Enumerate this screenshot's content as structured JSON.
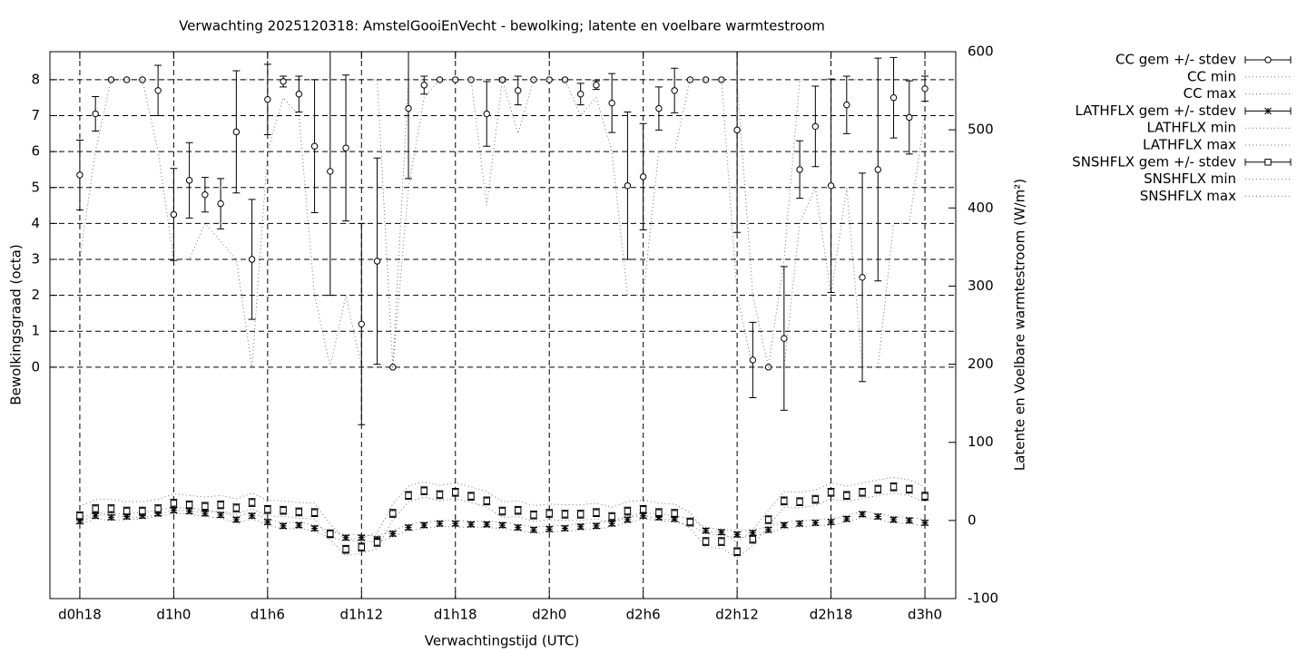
{
  "chart_data": {
    "type": "errorbar-line",
    "title": "Verwachting 2025120318: AmstelGooiEnVecht - bewolking; latente en voelbare warmtestroom",
    "xlabel": "Verwachtingstijd (UTC)",
    "ylabel": "Bewolkingsgraad (octa)",
    "y2label": "Latente en Voelbare warmtestroom (W/m²)",
    "x": [
      18,
      19,
      20,
      21,
      22,
      23,
      24,
      25,
      26,
      27,
      28,
      29,
      30,
      31,
      32,
      33,
      34,
      35,
      36,
      37,
      38,
      39,
      40,
      41,
      42,
      43,
      44,
      45,
      46,
      47,
      48,
      49,
      50,
      51,
      52,
      53,
      54,
      55,
      56,
      57,
      58,
      59,
      60,
      61,
      62,
      63,
      64,
      65,
      66,
      67,
      68,
      69,
      70,
      71,
      72
    ],
    "xlim": [
      16.09,
      73.97
    ],
    "xticks": [
      {
        "value": 18,
        "label": "d0h18"
      },
      {
        "value": 24,
        "label": "d1h0"
      },
      {
        "value": 30,
        "label": "d1h6"
      },
      {
        "value": 36,
        "label": "d1h12"
      },
      {
        "value": 42,
        "label": "d1h18"
      },
      {
        "value": 48,
        "label": "d2h0"
      },
      {
        "value": 54,
        "label": "d2h6"
      },
      {
        "value": 60,
        "label": "d2h12"
      },
      {
        "value": 66,
        "label": "d2h18"
      },
      {
        "value": 72,
        "label": "d3h0"
      }
    ],
    "ylim": [
      -6.44,
      8.78
    ],
    "yticks": [
      0,
      1,
      2,
      3,
      4,
      5,
      6,
      7,
      8
    ],
    "y2lim": [
      -100,
      600
    ],
    "y2ticks": [
      -100,
      0,
      100,
      200,
      300,
      400,
      500,
      600
    ],
    "grid": true,
    "legend": "outside-top-right",
    "series": [
      {
        "name": "CC gem +/- stdev",
        "style": "errorbars",
        "marker": "circle",
        "color": "#000000",
        "axis": "y",
        "values": [
          5.35,
          7.05,
          8,
          8,
          8,
          7.7,
          4.25,
          5.2,
          4.8,
          4.55,
          6.55,
          3,
          7.45,
          7.95,
          7.6,
          6.15,
          5.45,
          6.1,
          1.2,
          2.95,
          0,
          7.2,
          7.85,
          8,
          8,
          8,
          7.05,
          8,
          7.7,
          8,
          8,
          8,
          7.6,
          7.85,
          7.35,
          5.05,
          5.3,
          7.2,
          7.7,
          8,
          8,
          8,
          6.6,
          0.2,
          0,
          0.8,
          5.5,
          6.7,
          5.05,
          7.3,
          2.5,
          5.5,
          7.5,
          6.95,
          7.75
        ],
        "errors": [
          0.97,
          0.48,
          0,
          0,
          0,
          0.7,
          1.28,
          1.05,
          0.48,
          0.7,
          1.7,
          1.67,
          0.98,
          0.15,
          0.5,
          1.85,
          3.45,
          2.03,
          2.8,
          2.87,
          0,
          1.95,
          0.25,
          0,
          0,
          0,
          0.9,
          0.05,
          0.4,
          0,
          0,
          0,
          0.3,
          0.12,
          0.82,
          2.05,
          1.48,
          0.6,
          0.62,
          0,
          0,
          0,
          2.85,
          1.05,
          0,
          2.0,
          0.8,
          1.12,
          2.97,
          0.8,
          2.9,
          3.1,
          1.12,
          1.02,
          0.35
        ]
      },
      {
        "name": "CC min",
        "style": "dotted",
        "color": "#000000",
        "axis": "y",
        "values": [
          3,
          6,
          8,
          8,
          8,
          6,
          3,
          3,
          4,
          3.5,
          3,
          0,
          6,
          7.5,
          7,
          2,
          0,
          2,
          0,
          0,
          0,
          5,
          7.5,
          8,
          8,
          8,
          4.5,
          8,
          6.5,
          8,
          8,
          8,
          7,
          7.5,
          6,
          2,
          2,
          6,
          6,
          8,
          8,
          8,
          2,
          0,
          0,
          0,
          4,
          5,
          2,
          5,
          0,
          0,
          4,
          4,
          7
        ]
      },
      {
        "name": "CC max",
        "style": "dotted",
        "color": "#000000",
        "axis": "y",
        "values": [
          8,
          8,
          8,
          8,
          8,
          8,
          8,
          8,
          8,
          8,
          8,
          8,
          8,
          8,
          8,
          8,
          8,
          8,
          8,
          8,
          0,
          8,
          8,
          8,
          8,
          8,
          8,
          8,
          8,
          8,
          8,
          8,
          8,
          8,
          8,
          8,
          8,
          8,
          8,
          8,
          8,
          8,
          8,
          2,
          0,
          3,
          8,
          8,
          8,
          8,
          8,
          8,
          8,
          8,
          8
        ]
      },
      {
        "name": "LATHFLX gem +/- stdev",
        "style": "errorbars",
        "marker": "star",
        "color": "#000000",
        "axis": "y2",
        "values": [
          -1,
          6,
          4,
          5,
          6,
          9,
          13,
          12,
          9,
          7,
          1,
          6,
          -2,
          -7,
          -6,
          -10,
          -18,
          -22,
          -22,
          -24,
          -17,
          -9,
          -6,
          -4,
          -4,
          -5,
          -5,
          -6,
          -9,
          -12,
          -11,
          -10,
          -8,
          -7,
          -4,
          1,
          6,
          4,
          2,
          -2,
          -13,
          -15,
          -18,
          -16,
          -12,
          -6,
          -4,
          -3,
          -2,
          2,
          8,
          5,
          1,
          0,
          -3
        ],
        "errors": [
          3,
          3,
          3,
          3,
          3,
          3,
          3,
          3,
          3,
          3,
          3,
          3,
          3,
          3,
          3,
          3,
          3,
          3,
          3,
          3,
          3,
          3,
          3,
          3,
          3,
          3,
          3,
          3,
          3,
          3,
          3,
          3,
          3,
          3,
          3,
          3,
          3,
          3,
          3,
          3,
          3,
          3,
          3,
          3,
          3,
          3,
          3,
          3,
          3,
          3,
          3,
          3,
          3,
          3,
          3
        ]
      },
      {
        "name": "LATHFLX min",
        "style": "dotted",
        "color": "#000000",
        "axis": "y2",
        "values": [
          -5,
          2,
          0,
          1,
          2,
          5,
          9,
          8,
          5,
          3,
          -3,
          2,
          -6,
          -11,
          -10,
          -14,
          -22,
          -26,
          -26,
          -28,
          -21,
          -13,
          -10,
          -8,
          -8,
          -9,
          -9,
          -10,
          -13,
          -16,
          -15,
          -14,
          -12,
          -11,
          -8,
          -3,
          2,
          0,
          -2,
          -6,
          -17,
          -19,
          -22,
          -20,
          -16,
          -10,
          -8,
          -7,
          -6,
          -2,
          4,
          1,
          -3,
          -4,
          -7
        ]
      },
      {
        "name": "LATHFLX max",
        "style": "dotted",
        "color": "#000000",
        "axis": "y2",
        "values": [
          3,
          10,
          8,
          9,
          10,
          13,
          17,
          16,
          13,
          11,
          5,
          10,
          2,
          -3,
          -2,
          -6,
          -14,
          -18,
          -18,
          -20,
          -13,
          -5,
          -2,
          0,
          0,
          -1,
          -1,
          -2,
          -5,
          -8,
          -7,
          -6,
          -4,
          -3,
          0,
          5,
          10,
          8,
          6,
          2,
          -9,
          -11,
          -14,
          -12,
          -8,
          -2,
          0,
          1,
          2,
          6,
          12,
          9,
          5,
          4,
          1
        ]
      },
      {
        "name": "SNSHFLX gem +/- stdev",
        "style": "errorbars",
        "marker": "square",
        "color": "#000000",
        "axis": "y2",
        "values": [
          6,
          15,
          15,
          12,
          12,
          15,
          22,
          20,
          18,
          20,
          16,
          23,
          14,
          13,
          11,
          10,
          -17,
          -37,
          -34,
          -28,
          9,
          32,
          38,
          33,
          36,
          31,
          25,
          12,
          13,
          7,
          9,
          8,
          8,
          10,
          5,
          12,
          14,
          10,
          9,
          -2,
          -27,
          -27,
          -40,
          -24,
          1,
          25,
          24,
          27,
          36,
          32,
          36,
          40,
          43,
          40,
          31
        ],
        "errors": [
          5,
          5,
          5,
          5,
          5,
          5,
          5,
          5,
          5,
          5,
          5,
          5,
          5,
          5,
          5,
          5,
          5,
          5,
          5,
          5,
          5,
          5,
          5,
          5,
          5,
          5,
          5,
          5,
          5,
          5,
          5,
          5,
          5,
          5,
          5,
          5,
          5,
          5,
          5,
          5,
          5,
          5,
          5,
          5,
          5,
          5,
          5,
          5,
          5,
          5,
          5,
          5,
          5,
          5,
          5
        ]
      },
      {
        "name": "SNSHFLX min",
        "style": "dotted",
        "color": "#000000",
        "axis": "y2",
        "values": [
          -2,
          7,
          7,
          4,
          4,
          7,
          14,
          12,
          10,
          12,
          8,
          15,
          6,
          5,
          3,
          2,
          -25,
          -45,
          -42,
          -36,
          1,
          24,
          30,
          25,
          28,
          23,
          17,
          4,
          5,
          -1,
          1,
          0,
          0,
          2,
          -3,
          4,
          6,
          2,
          1,
          -10,
          -35,
          -35,
          -48,
          -32,
          -7,
          17,
          16,
          19,
          28,
          24,
          28,
          32,
          35,
          32,
          23
        ]
      },
      {
        "name": "SNSHFLX max",
        "style": "dotted",
        "color": "#000000",
        "axis": "y2",
        "values": [
          18,
          27,
          27,
          24,
          24,
          27,
          34,
          32,
          30,
          32,
          28,
          35,
          26,
          25,
          23,
          22,
          -5,
          -25,
          -22,
          -16,
          21,
          44,
          50,
          45,
          48,
          43,
          37,
          24,
          25,
          19,
          21,
          20,
          20,
          22,
          17,
          24,
          26,
          22,
          21,
          10,
          -15,
          -15,
          -28,
          -12,
          13,
          37,
          36,
          39,
          48,
          44,
          48,
          52,
          55,
          52,
          43
        ]
      }
    ]
  }
}
